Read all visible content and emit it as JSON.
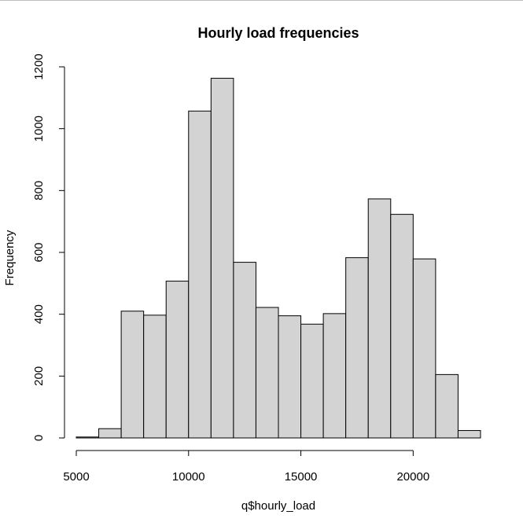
{
  "chart_data": {
    "type": "bar",
    "title": "Hourly load frequencies",
    "xlabel": "q$hourly_load",
    "ylabel": "Frequency",
    "bins": [
      [
        5000,
        6000
      ],
      [
        6000,
        7000
      ],
      [
        7000,
        8000
      ],
      [
        8000,
        9000
      ],
      [
        9000,
        10000
      ],
      [
        10000,
        11000
      ],
      [
        11000,
        12000
      ],
      [
        12000,
        13000
      ],
      [
        13000,
        14000
      ],
      [
        14000,
        15000
      ],
      [
        15000,
        16000
      ],
      [
        16000,
        17000
      ],
      [
        17000,
        18000
      ],
      [
        18000,
        19000
      ],
      [
        19000,
        20000
      ],
      [
        20000,
        21000
      ],
      [
        21000,
        22000
      ],
      [
        22000,
        23000
      ]
    ],
    "values": [
      3,
      30,
      410,
      397,
      507,
      1057,
      1163,
      568,
      422,
      395,
      368,
      402,
      583,
      773,
      723,
      579,
      205,
      24
    ],
    "xlim": [
      5000,
      23000
    ],
    "ylim": [
      0,
      1200
    ],
    "x_ticks": [
      5000,
      10000,
      15000,
      20000
    ],
    "x_tick_labels": [
      "5000",
      "10000",
      "15000",
      "20000"
    ],
    "y_ticks": [
      0,
      200,
      400,
      600,
      800,
      1000,
      1200
    ],
    "y_tick_labels": [
      "0",
      "200",
      "400",
      "600",
      "800",
      "1000",
      "1200"
    ],
    "bar_fill": "#d3d3d3",
    "bar_stroke": "#000000",
    "grid": false
  }
}
